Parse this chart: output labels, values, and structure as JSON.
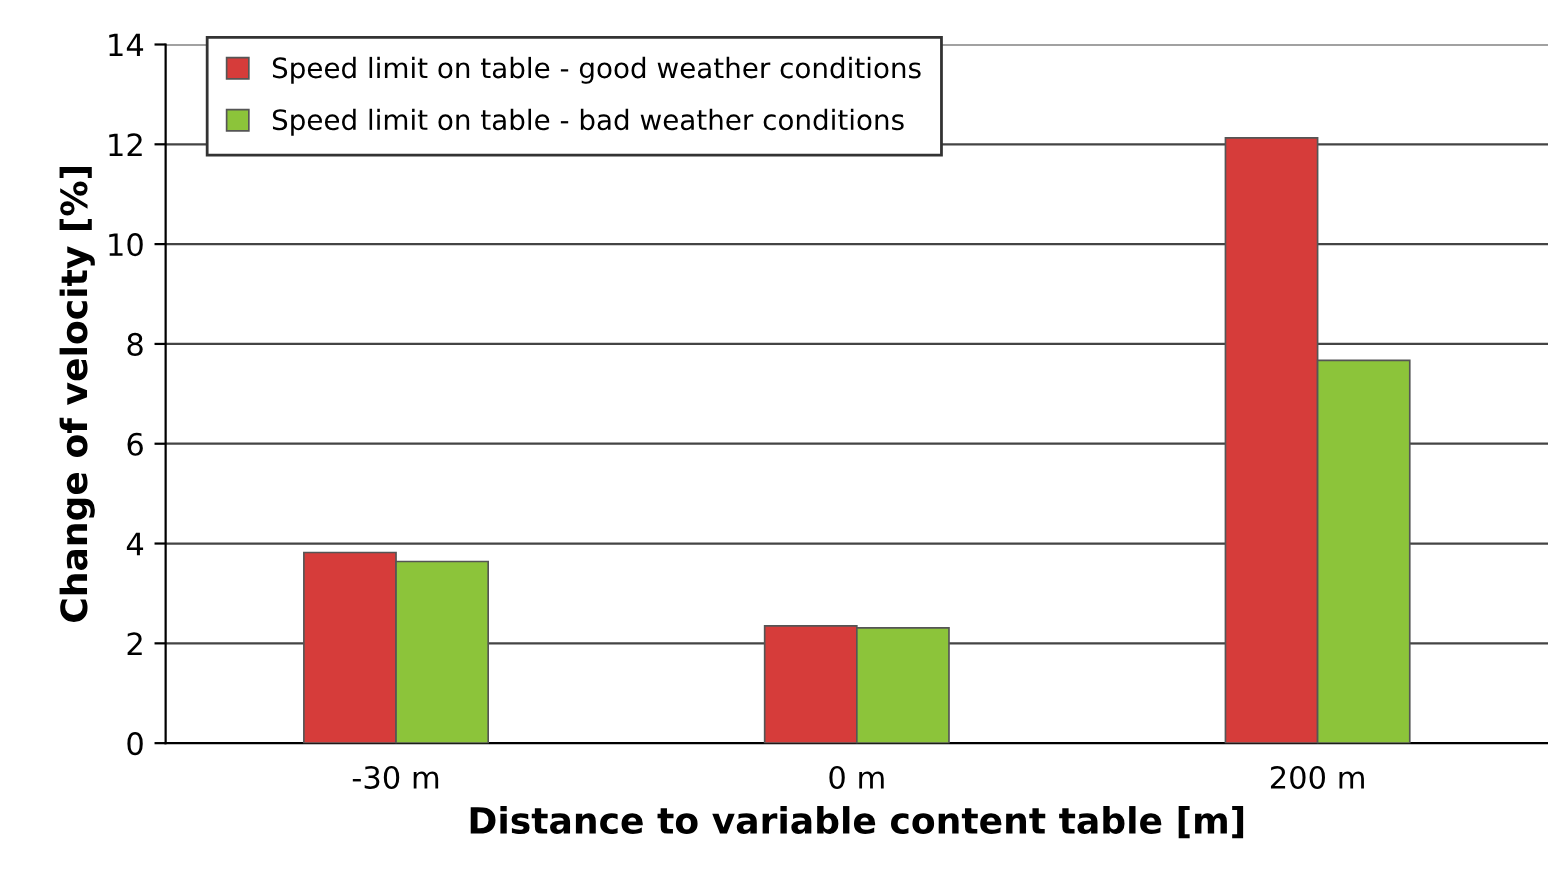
{
  "chart_data": {
    "type": "bar",
    "xlabel": "Distance to variable content table [m]",
    "ylabel": "Change of velocity [%]",
    "categories": [
      "-30 m",
      "0 m",
      "200 m"
    ],
    "series": [
      {
        "name": "Speed limit on table - good weather conditions",
        "color": "#d63c3a",
        "values": [
          3.82,
          2.35,
          12.13
        ]
      },
      {
        "name": "Speed limit on table - bad weather conditions",
        "color": "#8cc43a",
        "values": [
          3.64,
          2.31,
          7.67
        ]
      }
    ],
    "ylim": [
      0,
      14
    ],
    "yticks": [
      0,
      2,
      4,
      6,
      8,
      10,
      12,
      14
    ],
    "grid": "y",
    "legend": "top left"
  }
}
